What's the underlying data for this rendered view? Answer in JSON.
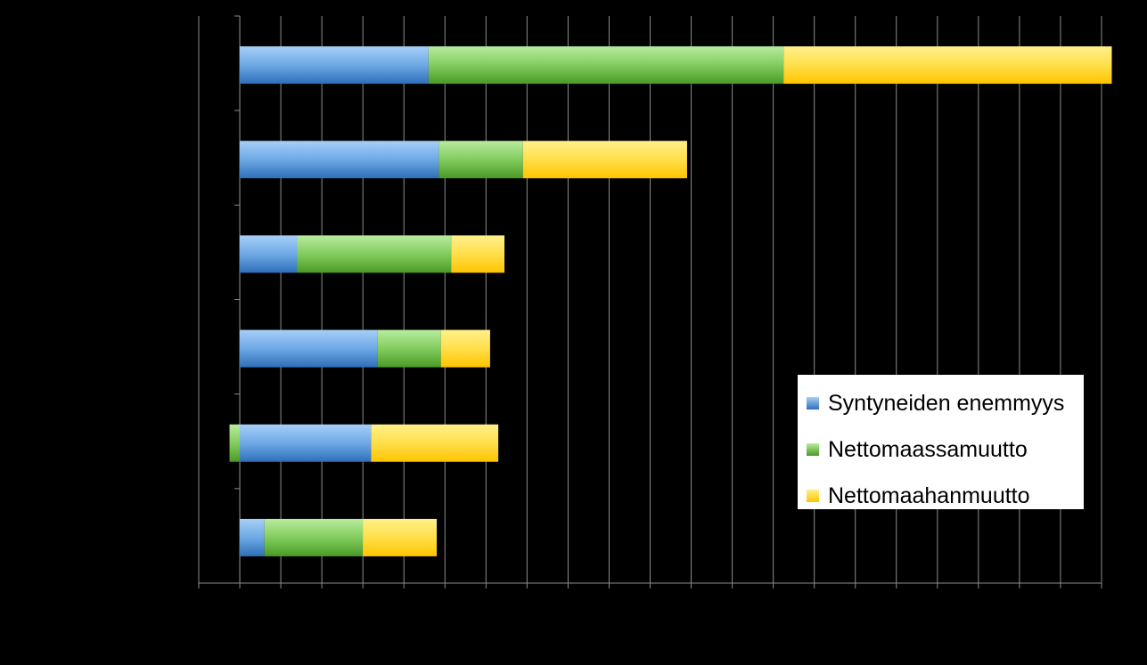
{
  "chart_data": {
    "type": "bar",
    "orientation": "horizontal",
    "stacked": true,
    "title": "",
    "xlabel": "",
    "ylabel": "",
    "grid": true,
    "legend_placement": "bottom-right",
    "xlim": [
      -1,
      21
    ],
    "categories": [
      "",
      "",
      "",
      "",
      "",
      ""
    ],
    "series": [
      {
        "name": "Syntyneiden enemmyys",
        "color": "#3d86cc",
        "values": [
          4.6,
          4.85,
          1.4,
          3.35,
          3.2,
          0.6
        ]
      },
      {
        "name": "Nettomaassamuutto",
        "color": "#5cb030",
        "values": [
          8.65,
          2.05,
          3.75,
          1.55,
          -0.25,
          2.4
        ]
      },
      {
        "name": "Nettomaahanmuutto",
        "color": "#ffcc1a",
        "values": [
          8.0,
          4.0,
          1.3,
          1.2,
          3.1,
          1.8
        ]
      }
    ]
  }
}
